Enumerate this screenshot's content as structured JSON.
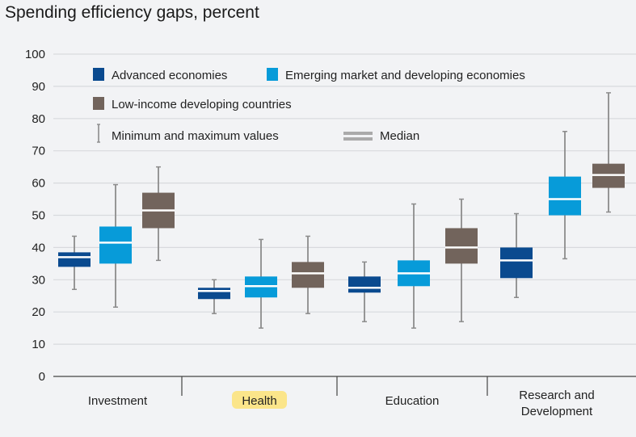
{
  "chart_data": {
    "type": "boxplot",
    "title": "Spending efficiency gaps, percent",
    "ylim": [
      0,
      100
    ],
    "yticks": [
      0,
      10,
      20,
      30,
      40,
      50,
      60,
      70,
      80,
      90,
      100
    ],
    "grid": true,
    "categories": [
      {
        "lines": [
          "Investment"
        ],
        "highlight": false
      },
      {
        "lines": [
          "Health"
        ],
        "highlight": true
      },
      {
        "lines": [
          "Education"
        ],
        "highlight": false
      },
      {
        "lines": [
          "Research and",
          "Development"
        ],
        "highlight": false
      }
    ],
    "series": [
      {
        "name": "Advanced economies",
        "color": "#0a4a8f",
        "boxes": [
          [
            27,
            34,
            37,
            38.5,
            43.5
          ],
          [
            19.5,
            24,
            26.5,
            27.5,
            30
          ],
          [
            17,
            26,
            27.5,
            31,
            35.5
          ],
          [
            24.5,
            30.5,
            36,
            40,
            50.5
          ]
        ]
      },
      {
        "name": "Emerging market and developing economies",
        "color": "#079bd9",
        "boxes": [
          [
            21.5,
            35,
            41.5,
            46.5,
            59.5
          ],
          [
            15,
            24.5,
            28,
            31,
            42.5
          ],
          [
            15,
            28,
            32,
            36,
            53.5
          ],
          [
            36.5,
            50,
            55,
            62,
            76
          ]
        ]
      },
      {
        "name": "Low-income developing countries",
        "color": "#72645c",
        "boxes": [
          [
            36,
            46,
            51.5,
            57,
            65
          ],
          [
            19.5,
            27.5,
            32,
            35.5,
            43.5
          ],
          [
            17,
            35,
            40,
            46,
            55
          ],
          [
            51,
            58.5,
            62.5,
            66,
            88
          ]
        ]
      }
    ],
    "box_format": [
      "min",
      "q1",
      "median",
      "q3",
      "max"
    ],
    "legend": {
      "minmax": "Minimum and maximum values",
      "median": "Median",
      "placement": "top-left"
    },
    "highlight_color": "#fbe58a",
    "whisker_color": "#8c8c8c",
    "grid_color": "#d8dadd"
  }
}
